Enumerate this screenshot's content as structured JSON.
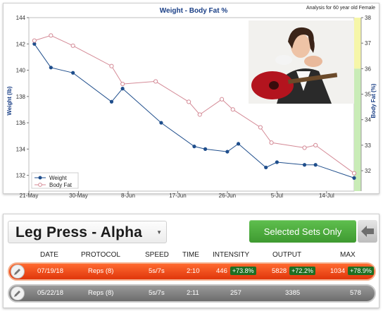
{
  "chart_data": {
    "type": "line",
    "title": "Weight - Body Fat %",
    "subtitle": "Analysis for 60 year old Female",
    "ylabel": "Weight (lb)",
    "y2label": "Body Fat (%)",
    "ylim": [
      130.8,
      144
    ],
    "y_ticks": [
      132,
      134,
      136,
      138,
      140,
      142,
      144
    ],
    "y2lim": [
      31.2,
      38
    ],
    "y2_ticks": [
      32,
      33,
      34,
      35,
      36,
      37,
      38
    ],
    "x_tick_labels": [
      "21-May",
      "30-May",
      "8-Jun",
      "17-Jun",
      "26-Jun",
      "5-Jul",
      "14-Jul"
    ],
    "x_tick_dates": [
      "2018-05-21",
      "2018-05-30",
      "2018-06-08",
      "2018-06-17",
      "2018-06-26",
      "2018-07-05",
      "2018-07-14"
    ],
    "xlim": [
      "2018-05-21",
      "2018-07-19"
    ],
    "legend_position": "bottom-left",
    "series": [
      {
        "name": "Weight",
        "axis": "left",
        "color": "#1f4e8c",
        "marker": "filled-circle",
        "x": [
          "2018-05-22",
          "2018-05-25",
          "2018-05-29",
          "2018-06-05",
          "2018-06-07",
          "2018-06-14",
          "2018-06-20",
          "2018-06-22",
          "2018-06-26",
          "2018-06-28",
          "2018-07-03",
          "2018-07-05",
          "2018-07-10",
          "2018-07-12",
          "2018-07-19"
        ],
        "values": [
          142.0,
          140.2,
          139.8,
          137.6,
          138.6,
          136.0,
          134.2,
          134.0,
          133.8,
          134.4,
          132.6,
          133.0,
          132.8,
          132.8,
          131.8
        ]
      },
      {
        "name": "Body Fat",
        "axis": "right",
        "color": "#d48a96",
        "marker": "open-circle",
        "x": [
          "2018-05-22",
          "2018-05-25",
          "2018-05-29",
          "2018-06-05",
          "2018-06-07",
          "2018-06-13",
          "2018-06-19",
          "2018-06-21",
          "2018-06-25",
          "2018-06-27",
          "2018-07-02",
          "2018-07-04",
          "2018-07-10",
          "2018-07-12",
          "2018-07-19"
        ],
        "values": [
          37.1,
          37.3,
          36.9,
          36.1,
          35.4,
          35.5,
          34.7,
          34.2,
          34.8,
          34.4,
          33.7,
          33.1,
          32.9,
          33.0,
          31.9
        ]
      }
    ],
    "right_axis_band": [
      {
        "from": 36,
        "to": 38,
        "color": "#f6f6a8"
      },
      {
        "from": 31.2,
        "to": 36,
        "color": "#c9ecb7"
      }
    ]
  },
  "exercise": {
    "name": "Leg Press - Alpha"
  },
  "selected_sets_label": "Selected Sets Only",
  "icons": {
    "dropdown": "chevron-down-icon",
    "back": "back-arrow-icon",
    "edit": "pencil-icon"
  },
  "table": {
    "headers": [
      "DATE",
      "PROTOCOL",
      "SPEED",
      "TIME",
      "INTENSITY",
      "OUTPUT",
      "MAX"
    ],
    "rows": [
      {
        "date": "07/19/18",
        "protocol": "Reps (8)",
        "speed": "5s/7s",
        "time": "2:10",
        "intensity": "446",
        "intensity_change": "+73.8%",
        "output": "5828",
        "output_change": "+72.2%",
        "max": "1034",
        "max_change": "+78.9%",
        "color": "#f04e1c"
      },
      {
        "date": "05/22/18",
        "protocol": "Reps (8)",
        "speed": "5s/7s",
        "time": "2:11",
        "intensity": "257",
        "output": "3385",
        "max": "578",
        "color": "#7d7d7d"
      }
    ]
  }
}
